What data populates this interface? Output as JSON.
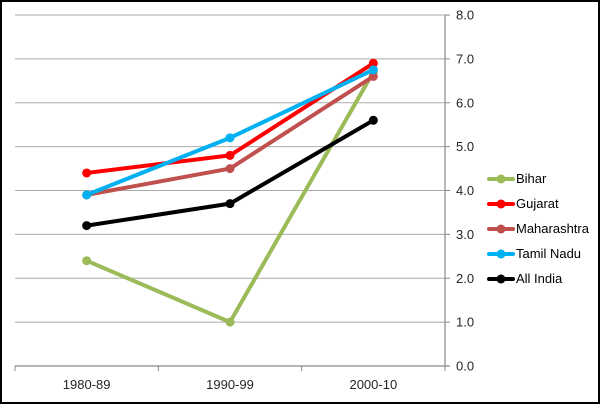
{
  "chart_data": {
    "type": "line",
    "categories": [
      "1980-89",
      "1990-99",
      "2000-10"
    ],
    "series": [
      {
        "name": "Bihar",
        "color": "#9BBB59",
        "values": [
          2.4,
          1.0,
          6.7
        ]
      },
      {
        "name": "Gujarat",
        "color": "#FF0000",
        "values": [
          4.4,
          4.8,
          6.9
        ]
      },
      {
        "name": "Maharashtra",
        "color": "#C0504D",
        "values": [
          3.9,
          4.5,
          6.6
        ]
      },
      {
        "name": "Tamil Nadu",
        "color": "#00B0F0",
        "values": [
          3.9,
          5.2,
          6.75
        ]
      },
      {
        "name": "All India",
        "color": "#000000",
        "values": [
          3.2,
          3.7,
          5.6
        ]
      }
    ],
    "ylim": [
      0,
      8
    ],
    "y_tick_step": 1,
    "y_tick_labels": [
      "0.0",
      "1.0",
      "2.0",
      "3.0",
      "4.0",
      "5.0",
      "6.0",
      "7.0",
      "8.0"
    ],
    "y_axis_side": "right",
    "legend_position": "right",
    "grid": true,
    "grid_color": "#ABABAB",
    "axis_color": "#888888",
    "tick_text_color": "#262626",
    "legend_text_color": "#000000",
    "background_color": "#FFFFFF",
    "border_color": "#000000"
  }
}
